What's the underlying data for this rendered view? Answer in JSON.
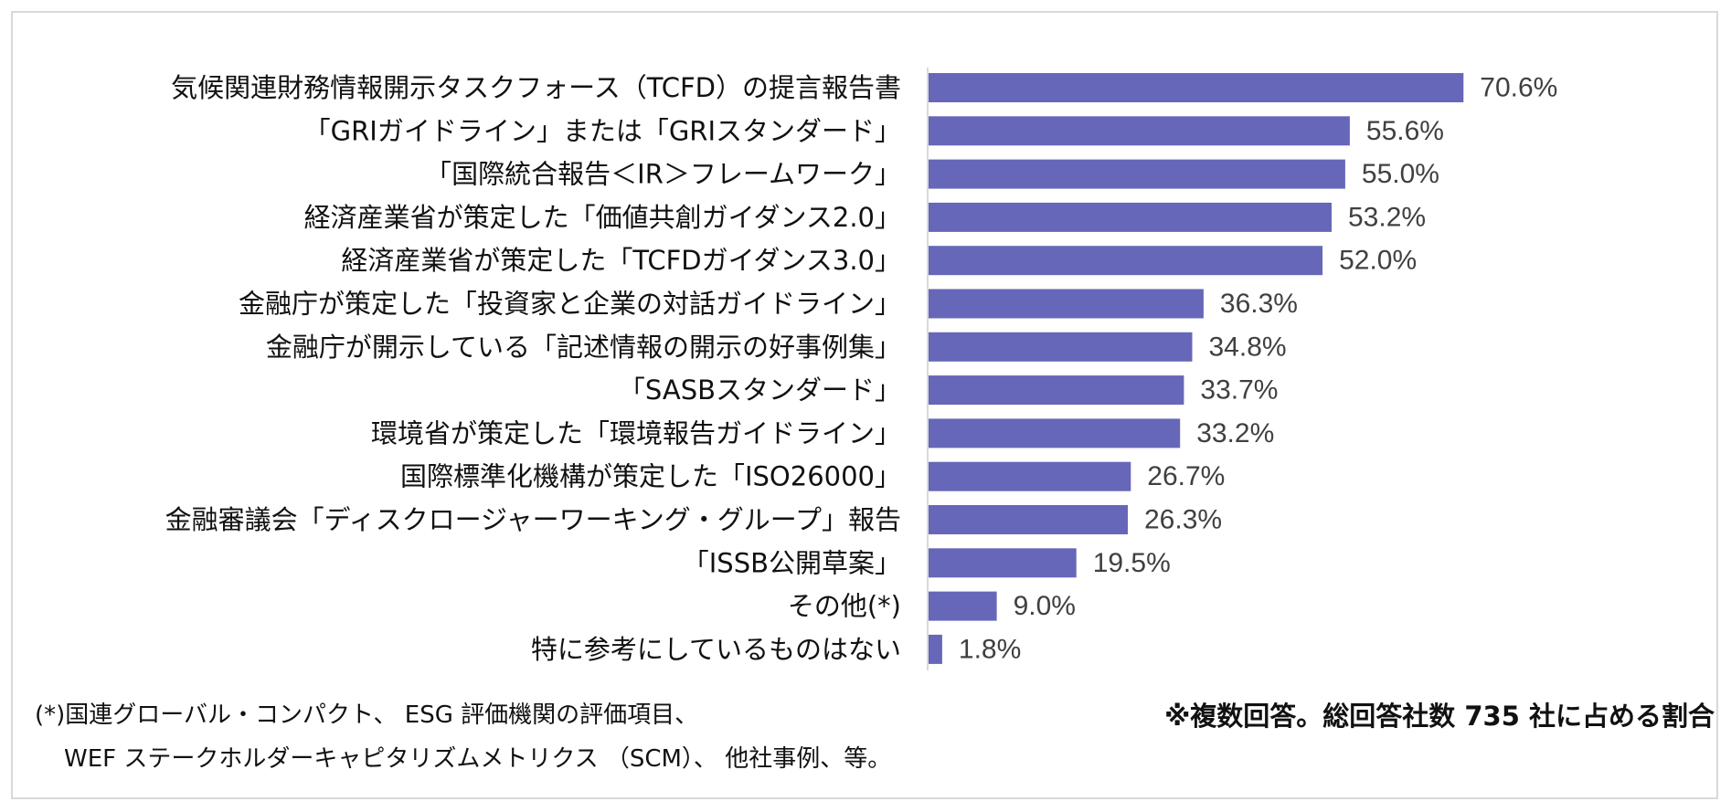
{
  "chart_data": {
    "type": "bar",
    "orientation": "horizontal",
    "title": "",
    "xlabel": "",
    "ylabel": "",
    "xlim": [
      0,
      100
    ],
    "grid": false,
    "legend": "none",
    "bar_color": "#6667b8",
    "value_suffix": "%",
    "categories": [
      "気候関連財務情報開示タスクフォース（TCFD）の提言報告書",
      "「GRIガイドライン」または「GRIスタンダード」",
      "「国際統合報告＜IR＞フレームワーク」",
      "経済産業省が策定した「価値共創ガイダンス2.0」",
      "経済産業省が策定した「TCFDガイダンス3.0」",
      "金融庁が策定した「投資家と企業の対話ガイドライン」",
      "金融庁が開示している「記述情報の開示の好事例集」",
      "「SASBスタンダード」",
      "環境省が策定した「環境報告ガイドライン」",
      "国際標準化機構が策定した「ISO26000」",
      "金融審議会「ディスクロージャーワーキング・グループ」報告",
      "「ISSB公開草案」",
      "その他(*)",
      "特に参考にしているものはない"
    ],
    "values": [
      70.6,
      55.6,
      55.0,
      53.2,
      52.0,
      36.3,
      34.8,
      33.7,
      33.2,
      26.7,
      26.3,
      19.5,
      9.0,
      1.8
    ]
  },
  "notes": {
    "basis": "※複数回答。総回答社数 735 社に占める割合",
    "footnote_line1": "(*)国連グローバル・コンパクト、 ESG 評価機関の評価項目、",
    "footnote_line2": "WEF ステークホルダーキャピタリズムメトリクス （SCM）、 他社事例、等。"
  },
  "colors": {
    "bar": "#6667b8",
    "axis": "#d9d9d9",
    "frame": "#d9d9d9"
  }
}
